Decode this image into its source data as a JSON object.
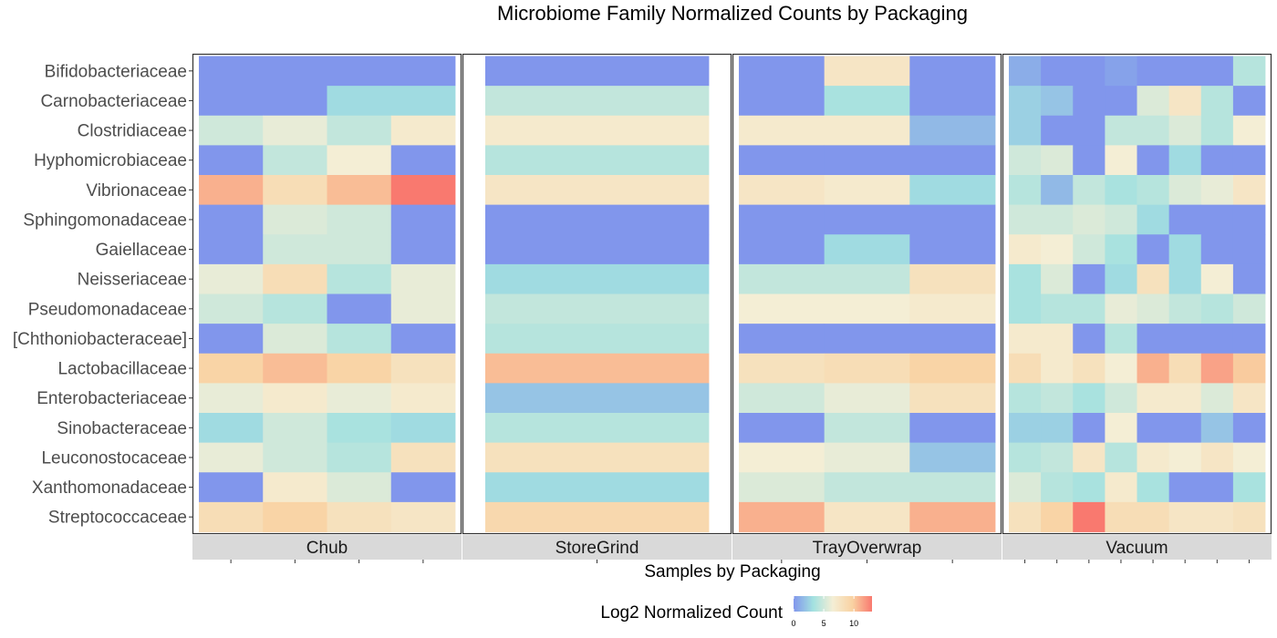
{
  "chart_data": {
    "type": "heatmap",
    "title": "Microbiome Family Normalized Counts by Packaging",
    "xlabel": "Samples by Packaging",
    "ylabel": "",
    "legend": {
      "title": "Log2 Normalized Count",
      "ticks": [
        0,
        5,
        10
      ],
      "range": [
        0,
        13
      ],
      "placement": "bottom",
      "colors": [
        "#8196EC",
        "#A3E1E0",
        "#F4EED5",
        "#F9D2A2",
        "#F9796F"
      ]
    },
    "families": [
      "Bifidobacteriaceae",
      "Carnobacteriaceae",
      "Clostridiaceae",
      "Hyphomicrobiaceae",
      "Vibrionaceae",
      "Sphingomonadaceae",
      "Gaiellaceae",
      "Neisseriaceae",
      "Pseudomonadaceae",
      "[Chthoniobacteraceae]",
      "Lactobacillaceae",
      "Enterobacteriaceae",
      "Sinobacteraceae",
      "Leuconostocaceae",
      "Xanthomonadaceae",
      "Streptococcaceae"
    ],
    "panels": [
      {
        "name": "Chub",
        "values": [
          [
            0,
            0,
            0,
            0
          ],
          [
            0,
            0,
            3,
            3
          ],
          [
            5,
            6,
            4.5,
            7
          ],
          [
            0,
            4.5,
            6.5,
            0
          ],
          [
            11,
            8.5,
            10.5,
            13
          ],
          [
            0,
            5.5,
            5,
            0
          ],
          [
            0,
            5,
            5,
            0
          ],
          [
            6,
            8.5,
            4,
            6
          ],
          [
            5,
            4,
            0,
            6
          ],
          [
            0,
            5.5,
            4,
            0
          ],
          [
            9.5,
            10.5,
            9.5,
            8
          ],
          [
            6,
            7,
            6,
            7
          ],
          [
            3,
            5,
            3.5,
            3
          ],
          [
            6,
            5,
            4,
            8
          ],
          [
            0,
            7,
            5.5,
            0
          ],
          [
            8.5,
            9.5,
            8,
            7.5
          ]
        ]
      },
      {
        "name": "StoreGrind",
        "values": [
          [
            0
          ],
          [
            4.5
          ],
          [
            7
          ],
          [
            4
          ],
          [
            7.5
          ],
          [
            0
          ],
          [
            0
          ],
          [
            3
          ],
          [
            4.5
          ],
          [
            4
          ],
          [
            10.5
          ],
          [
            2
          ],
          [
            4
          ],
          [
            8
          ],
          [
            3
          ],
          [
            9
          ]
        ]
      },
      {
        "name": "TrayOverwrap",
        "values": [
          [
            0,
            7.5,
            0
          ],
          [
            0,
            3.5,
            0
          ],
          [
            7,
            7,
            1.5
          ],
          [
            0,
            0,
            0
          ],
          [
            7.5,
            7,
            3
          ],
          [
            0,
            0,
            0
          ],
          [
            0,
            3,
            0
          ],
          [
            4.5,
            4.5,
            8
          ],
          [
            6.5,
            6.5,
            7
          ],
          [
            0,
            0,
            0
          ],
          [
            8,
            8.5,
            9.5
          ],
          [
            5,
            6,
            8
          ],
          [
            0,
            4.5,
            0
          ],
          [
            6.5,
            6,
            2
          ],
          [
            5.5,
            4.5,
            4.5
          ],
          [
            11,
            7.5,
            11
          ]
        ]
      },
      {
        "name": "Vacuum",
        "values": [
          [
            1,
            0,
            0,
            0.5,
            0,
            0,
            0,
            4
          ],
          [
            2.5,
            2,
            0,
            0,
            5.5,
            7.5,
            4,
            0
          ],
          [
            2.5,
            0,
            0,
            4.5,
            4.5,
            5.5,
            4,
            6.5
          ],
          [
            5,
            5.5,
            0,
            6.5,
            0,
            3,
            0,
            0
          ],
          [
            4,
            1.5,
            4.5,
            3.5,
            4,
            5.5,
            6,
            7.5
          ],
          [
            5,
            5,
            5.5,
            5,
            3,
            0,
            0,
            0
          ],
          [
            7,
            6.5,
            5,
            3.5,
            0,
            3,
            0,
            0
          ],
          [
            3.5,
            5.5,
            0,
            3,
            8,
            3,
            6.5,
            0
          ],
          [
            3.5,
            4,
            4,
            6,
            5.5,
            4.5,
            4,
            5
          ],
          [
            7,
            7,
            0,
            4,
            0,
            0,
            0,
            0
          ],
          [
            8.5,
            7,
            8,
            6.5,
            11,
            8.5,
            11.5,
            10
          ],
          [
            4,
            4.5,
            3.5,
            5,
            7,
            7,
            5.5,
            7.5
          ],
          [
            2.5,
            2.5,
            0,
            6.5,
            0,
            0,
            2,
            0
          ],
          [
            4,
            4.5,
            7.5,
            4,
            7,
            6.5,
            7.5,
            6.5
          ],
          [
            5.5,
            4,
            3.5,
            7,
            3.5,
            0,
            0,
            3.5
          ],
          [
            8,
            9.5,
            13,
            8.5,
            8.5,
            7.5,
            7.5,
            8
          ]
        ]
      }
    ]
  }
}
